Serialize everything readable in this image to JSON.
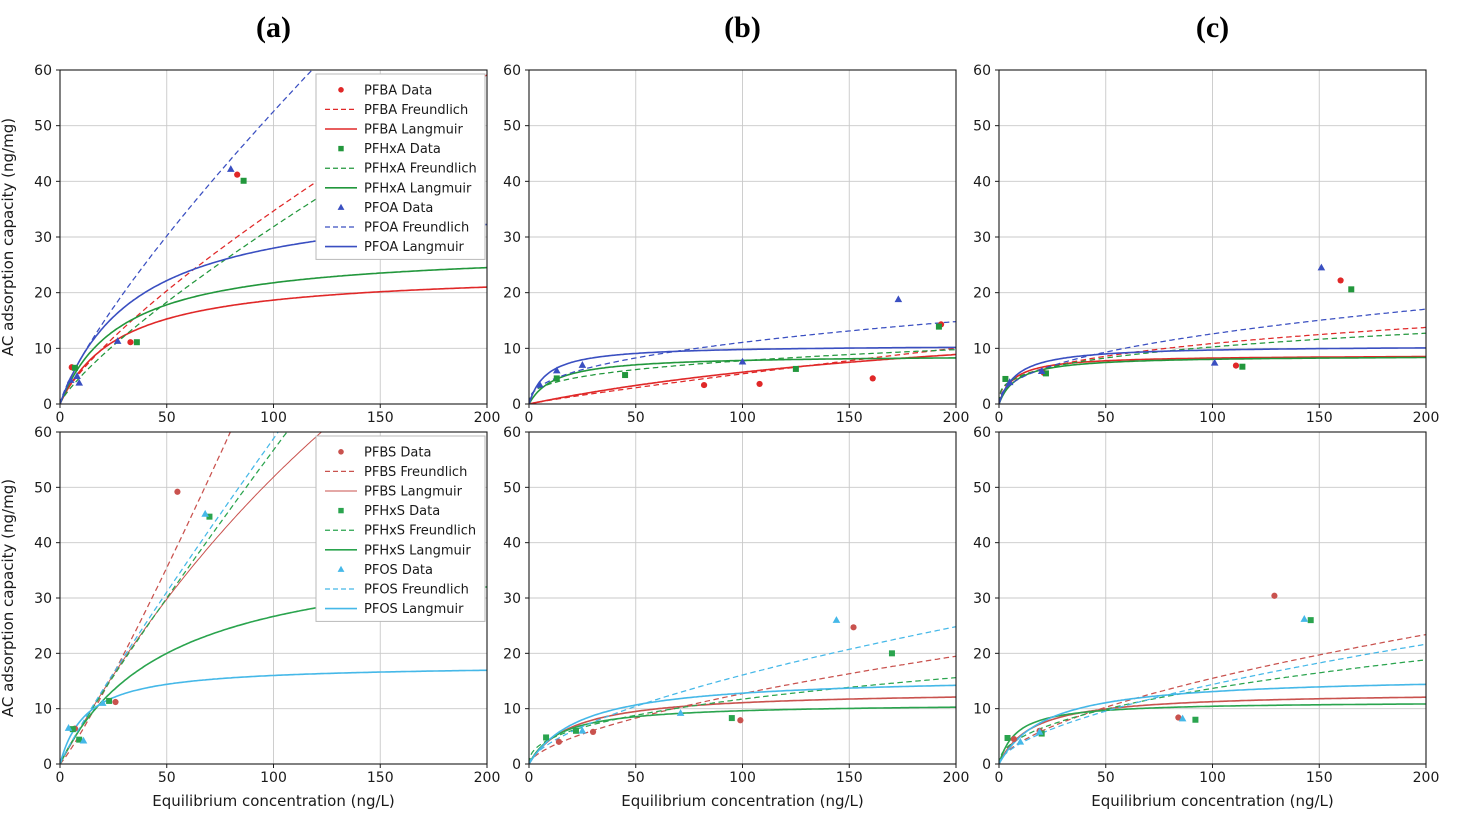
{
  "chart_data": {
    "type": "line+scatter",
    "description": "Adsorption isotherms: AC adsorption capacity vs equilibrium concentration for PFAS compounds, with Freundlich (dashed, q=K*C^n_inv) and Langmuir (solid, q=qm*b*C/(1+b*C)) model fits",
    "panel_titles": [
      "(a)",
      "(b)",
      "(c)"
    ],
    "axes": {
      "xlim": [
        0,
        200
      ],
      "ylim": [
        0,
        60
      ],
      "xticks": [
        0,
        50,
        100,
        150,
        200
      ],
      "yticks": [
        0,
        10,
        20,
        30,
        40,
        50,
        60
      ],
      "xlabel": "Equilibrium concentration (ng/L)",
      "ylabel": "AC adsorption capacity (ng/mg)",
      "grid": true
    },
    "panels": [
      {
        "id": "carboxylates-a",
        "row": 0,
        "col": 0,
        "legend": true,
        "legend_entries": [
          "PFBA Data",
          "PFBA Freundlich",
          "PFBA Langmuir",
          "PFHxA Data",
          "PFHxA Freundlich",
          "PFHxA Langmuir",
          "PFOA Data",
          "PFOA Freundlich",
          "PFOA Langmuir"
        ],
        "series": [
          {
            "name": "PFBA",
            "color": "#e02828",
            "marker": "circle",
            "points": [
              [
                5.5,
                6.6
              ],
              [
                33,
                11.1
              ],
              [
                83,
                41.2
              ]
            ],
            "freundlich": {
              "K": 1.0,
              "n_inv": 0.77
            },
            "langmuir": {
              "qm": 24,
              "b": 0.035
            }
          },
          {
            "name": "PFHxA",
            "color": "#22973c",
            "marker": "square",
            "points": [
              [
                7,
                6.5
              ],
              [
                36,
                11.1
              ],
              [
                86,
                40.1
              ]
            ],
            "freundlich": {
              "K": 0.8,
              "n_inv": 0.8
            },
            "langmuir": {
              "qm": 28,
              "b": 0.035
            }
          },
          {
            "name": "PFOA",
            "color": "#3a4fc1",
            "marker": "triangle",
            "points": [
              [
                5,
                4.3
              ],
              [
                8,
                5.0
              ],
              [
                9,
                3.8
              ],
              [
                27,
                11.3
              ],
              [
                80,
                42.2
              ]
            ],
            "freundlich": {
              "K": 1.32,
              "n_inv": 0.8
            },
            "langmuir": {
              "qm": 38,
              "b": 0.028
            }
          }
        ]
      },
      {
        "id": "carboxylates-b",
        "row": 0,
        "col": 1,
        "legend": false,
        "series": [
          {
            "name": "PFBA",
            "color": "#e02828",
            "marker": "circle",
            "points": [
              [
                82,
                3.4
              ],
              [
                108,
                3.6
              ],
              [
                161,
                4.6
              ],
              [
                193,
                14.3
              ]
            ],
            "freundlich": {
              "K": 0.09,
              "n_inv": 0.89
            },
            "langmuir": {
              "qm": 20,
              "b": 0.004
            }
          },
          {
            "name": "PFHxA",
            "color": "#22973c",
            "marker": "square",
            "points": [
              [
                13,
                4.6
              ],
              [
                45,
                5.2
              ],
              [
                125,
                6.3
              ],
              [
                192,
                13.9
              ]
            ],
            "freundlich": {
              "K": 1.7,
              "n_inv": 0.33
            },
            "langmuir": {
              "qm": 8.8,
              "b": 0.08
            }
          },
          {
            "name": "PFOA",
            "color": "#3a4fc1",
            "marker": "triangle",
            "points": [
              [
                5,
                3.5
              ],
              [
                13,
                6.0
              ],
              [
                25,
                7.0
              ],
              [
                100,
                7.6
              ],
              [
                173,
                18.8
              ]
            ],
            "freundlich": {
              "K": 1.6,
              "n_inv": 0.42
            },
            "langmuir": {
              "qm": 10.6,
              "b": 0.12
            }
          }
        ]
      },
      {
        "id": "carboxylates-c",
        "row": 0,
        "col": 2,
        "legend": false,
        "series": [
          {
            "name": "PFBA",
            "color": "#e02828",
            "marker": "circle",
            "points": [
              [
                21,
                5.6
              ],
              [
                111,
                6.9
              ],
              [
                160,
                22.2
              ]
            ],
            "freundlich": {
              "K": 2.27,
              "n_inv": 0.34
            },
            "langmuir": {
              "qm": 8.8,
              "b": 0.15
            }
          },
          {
            "name": "PFHxA",
            "color": "#22973c",
            "marker": "square",
            "points": [
              [
                3,
                4.5
              ],
              [
                22,
                5.5
              ],
              [
                114,
                6.7
              ],
              [
                165,
                20.6
              ]
            ],
            "freundlich": {
              "K": 2.46,
              "n_inv": 0.31
            },
            "langmuir": {
              "qm": 8.7,
              "b": 0.12
            }
          },
          {
            "name": "PFOA",
            "color": "#3a4fc1",
            "marker": "triangle",
            "points": [
              [
                5,
                3.9
              ],
              [
                20,
                5.9
              ],
              [
                101,
                7.4
              ],
              [
                151,
                24.5
              ]
            ],
            "freundlich": {
              "K": 1.7,
              "n_inv": 0.435
            },
            "langmuir": {
              "qm": 10.5,
              "b": 0.12
            }
          }
        ]
      },
      {
        "id": "sulfonates-a",
        "row": 1,
        "col": 0,
        "legend": true,
        "legend_entries": [
          "PFBS Data",
          "PFBS Freundlich",
          "PFBS Langmuir",
          "PFHxS Data",
          "PFHxS Freundlich",
          "PFHxS Langmuir",
          "PFOS Data",
          "PFOS Freundlich",
          "PFOS Langmuir"
        ],
        "series": [
          {
            "name": "PFBS",
            "color": "#c9524e",
            "marker": "circle",
            "langmuir_lw": 1.0,
            "points": [
              [
                7,
                6.4
              ],
              [
                26,
                11.2
              ],
              [
                55,
                49.2
              ]
            ],
            "freundlich": {
              "K": 0.435,
              "n_inv": 1.125
            },
            "langmuir": {
              "qm": 200,
              "b": 0.0035
            }
          },
          {
            "name": "PFHxS",
            "color": "#2aa44e",
            "marker": "square",
            "points": [
              [
                6,
                6.3
              ],
              [
                9,
                4.4
              ],
              [
                23,
                11.4
              ],
              [
                70,
                44.7
              ]
            ],
            "freundlich": {
              "K": 0.82,
              "n_inv": 0.92
            },
            "langmuir": {
              "qm": 40,
              "b": 0.02
            }
          },
          {
            "name": "PFOS",
            "color": "#45b8e8",
            "marker": "triangle",
            "points": [
              [
                4,
                6.5
              ],
              [
                11,
                4.2
              ],
              [
                20,
                11.0
              ],
              [
                68,
                45.2
              ]
            ],
            "freundlich": {
              "K": 0.85,
              "n_inv": 0.92
            },
            "langmuir": {
              "qm": 18,
              "b": 0.08
            }
          }
        ]
      },
      {
        "id": "sulfonates-b",
        "row": 1,
        "col": 1,
        "legend": false,
        "series": [
          {
            "name": "PFBS",
            "color": "#c9524e",
            "marker": "circle",
            "points": [
              [
                14,
                4.0
              ],
              [
                30,
                5.8
              ],
              [
                99,
                7.9
              ],
              [
                152,
                24.7
              ]
            ],
            "freundlich": {
              "K": 0.745,
              "n_inv": 0.616
            },
            "langmuir": {
              "qm": 13.3,
              "b": 0.05
            }
          },
          {
            "name": "PFHxS",
            "color": "#2aa44e",
            "marker": "square",
            "points": [
              [
                8,
                4.8
              ],
              [
                22,
                6.0
              ],
              [
                95,
                8.3
              ],
              [
                170,
                20.0
              ]
            ],
            "freundlich": {
              "K": 1.75,
              "n_inv": 0.413
            },
            "langmuir": {
              "qm": 11,
              "b": 0.07
            }
          },
          {
            "name": "PFOS",
            "color": "#45b8e8",
            "marker": "triangle",
            "points": [
              [
                25,
                6.0
              ],
              [
                71,
                9.2
              ],
              [
                144,
                26.0
              ]
            ],
            "freundlich": {
              "K": 0.9,
              "n_inv": 0.626
            },
            "langmuir": {
              "qm": 16,
              "b": 0.04
            }
          }
        ]
      },
      {
        "id": "sulfonates-c",
        "row": 1,
        "col": 2,
        "legend": false,
        "series": [
          {
            "name": "PFBS",
            "color": "#c9524e",
            "marker": "circle",
            "points": [
              [
                7,
                4.5
              ],
              [
                19,
                6.0
              ],
              [
                84,
                8.4
              ],
              [
                129,
                30.4
              ]
            ],
            "freundlich": {
              "K": 1.0,
              "n_inv": 0.595
            },
            "langmuir": {
              "qm": 13,
              "b": 0.065
            }
          },
          {
            "name": "PFHxS",
            "color": "#2aa44e",
            "marker": "square",
            "points": [
              [
                4,
                4.7
              ],
              [
                20,
                5.5
              ],
              [
                92,
                8.0
              ],
              [
                146,
                26.0
              ]
            ],
            "freundlich": {
              "K": 1.62,
              "n_inv": 0.463
            },
            "langmuir": {
              "qm": 11.3,
              "b": 0.12
            }
          },
          {
            "name": "PFOS",
            "color": "#45b8e8",
            "marker": "triangle",
            "points": [
              [
                10,
                4.0
              ],
              [
                19,
                5.8
              ],
              [
                86,
                8.2
              ],
              [
                143,
                26.2
              ]
            ],
            "freundlich": {
              "K": 0.95,
              "n_inv": 0.59
            },
            "langmuir": {
              "qm": 16,
              "b": 0.045
            }
          }
        ]
      }
    ]
  }
}
